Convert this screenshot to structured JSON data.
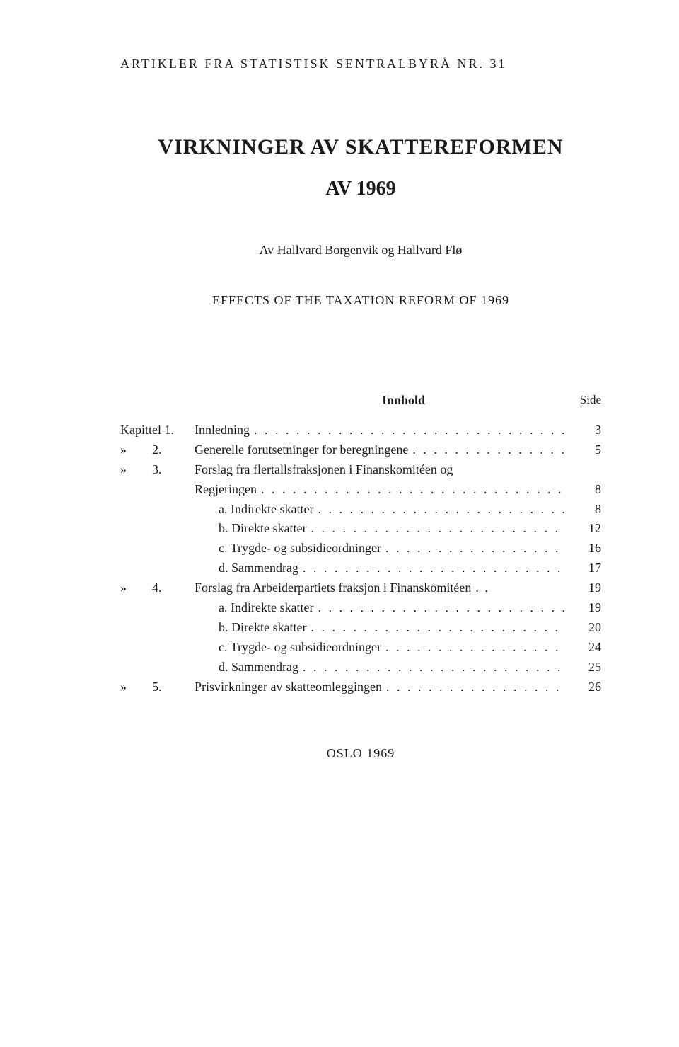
{
  "series": "ARTIKLER FRA STATISTISK SENTRALBYRÅ NR. 31",
  "title_main": "VIRKNINGER AV SKATTEREFORMEN",
  "title_year": "AV 1969",
  "authors": "Av Hallvard Borgenvik og Hallvard Flø",
  "subtitle_en": "EFFECTS OF THE TAXATION REFORM OF 1969",
  "toc_heading": "Innhold",
  "toc_side": "Side",
  "chapter_word": "Kapittel",
  "ditto": "»",
  "toc": [
    {
      "chap": "Kapittel 1.",
      "label": "Innledning",
      "page": "3"
    },
    {
      "chap": "»        2.",
      "label": "Generelle forutsetninger for beregningene",
      "page": "5"
    },
    {
      "chap": "»        3.",
      "label": "Forslag fra flertallsfraksjonen i Finanskomitéen og",
      "page": ""
    },
    {
      "chap": "",
      "label": "Regjeringen",
      "page": "8"
    },
    {
      "chap": "",
      "label": "a. Indirekte skatter",
      "page": "8",
      "sub": true
    },
    {
      "chap": "",
      "label": "b. Direkte skatter",
      "page": "12",
      "sub": true
    },
    {
      "chap": "",
      "label": "c. Trygde- og subsidieordninger",
      "page": "16",
      "sub": true
    },
    {
      "chap": "",
      "label": "d. Sammendrag",
      "page": "17",
      "sub": true
    },
    {
      "chap": "»        4.",
      "label": "Forslag fra Arbeiderpartiets fraksjon i Finanskomitéen",
      "page": "19",
      "trailing": ". ."
    },
    {
      "chap": "",
      "label": "a. Indirekte skatter",
      "page": "19",
      "sub": true
    },
    {
      "chap": "",
      "label": "b. Direkte skatter",
      "page": "20",
      "sub": true
    },
    {
      "chap": "",
      "label": "c. Trygde- og subsidieordninger",
      "page": "24",
      "sub": true
    },
    {
      "chap": "",
      "label": "d. Sammendrag",
      "page": "25",
      "sub": true
    },
    {
      "chap": "»        5.",
      "label": "Prisvirkninger av skatteomleggingen",
      "page": "26"
    }
  ],
  "footer": "OSLO 1969",
  "colors": {
    "background": "#ffffff",
    "text": "#1a1a1a"
  },
  "typography": {
    "series_fontsize": 18,
    "title_fontsize": 30,
    "body_fontsize": 18,
    "series_letterspacing": 3
  }
}
